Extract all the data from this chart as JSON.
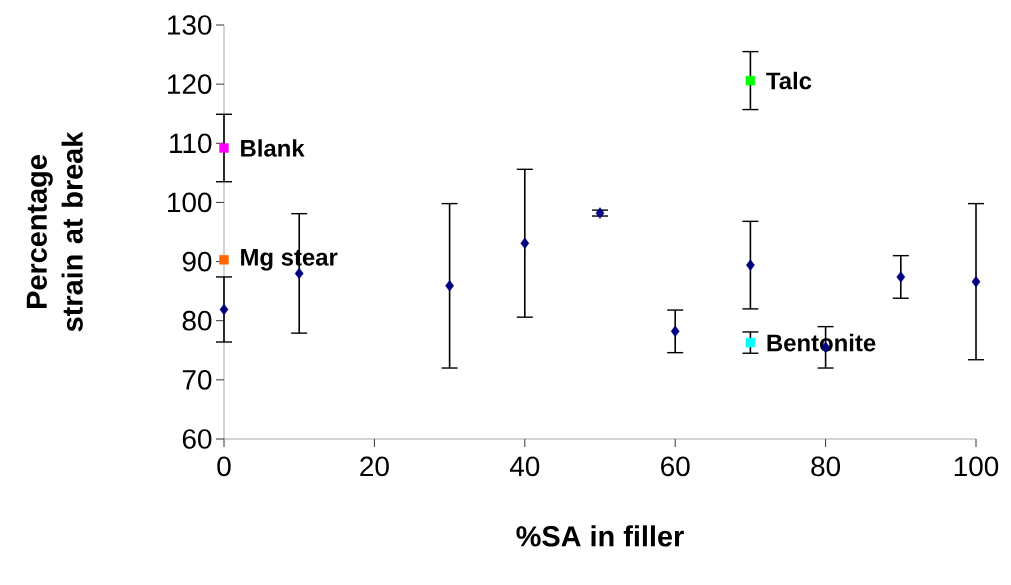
{
  "chart_data": {
    "type": "scatter",
    "xlabel": "%SA in filler",
    "ylabel": "Percentage strain at break",
    "xlim": [
      0,
      100
    ],
    "ylim": [
      60,
      130
    ],
    "xticks": [
      0,
      20,
      40,
      60,
      80,
      100
    ],
    "yticks": [
      60,
      70,
      80,
      90,
      100,
      110,
      120,
      130
    ],
    "series": [
      {
        "color": "#000080",
        "marker": "diamond",
        "x": [
          0,
          10,
          30,
          40,
          50,
          60,
          70,
          80,
          90,
          100
        ],
        "values": [
          81.9,
          88.0,
          85.9,
          93.1,
          98.2,
          78.2,
          89.4,
          75.5,
          87.4,
          86.6
        ],
        "errors": [
          5.5,
          10.1,
          13.9,
          12.5,
          0.5,
          3.6,
          7.4,
          3.5,
          3.6,
          13.2
        ]
      },
      {
        "name": "Blank",
        "color": "#ff00ff",
        "marker": "square",
        "x": [
          0
        ],
        "values": [
          109.2
        ],
        "errors": [
          5.7
        ]
      },
      {
        "name": "Mg stear",
        "color": "#ff6600",
        "marker": "square",
        "x": [
          0
        ],
        "values": [
          90.3
        ]
      },
      {
        "name": "Talc",
        "color": "#00ff00",
        "marker": "square",
        "x": [
          70
        ],
        "values": [
          120.6
        ],
        "errors": [
          4.9
        ]
      },
      {
        "name": "Bentonite",
        "color": "#00ffff",
        "marker": "square",
        "x": [
          70
        ],
        "values": [
          76.3
        ],
        "errors": [
          1.8
        ]
      }
    ]
  }
}
